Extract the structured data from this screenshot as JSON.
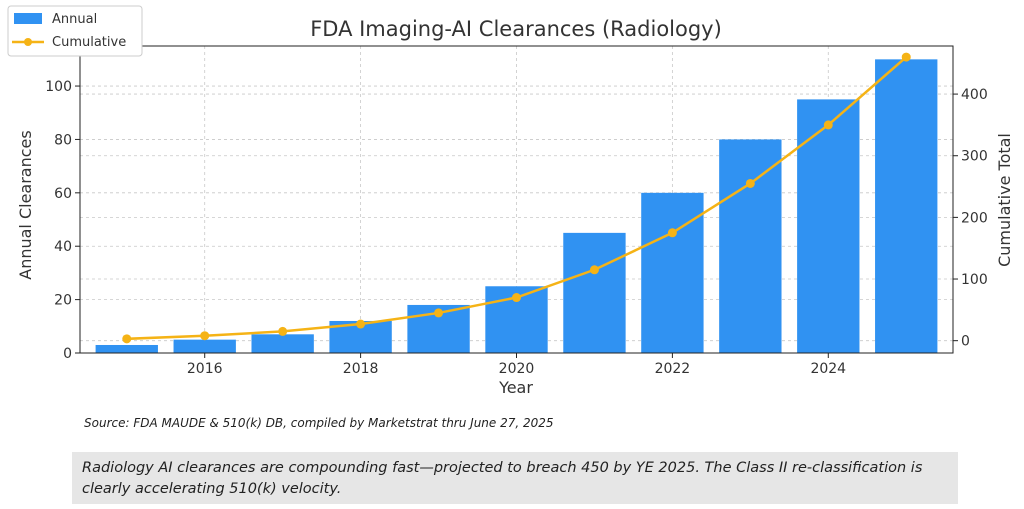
{
  "chart_data": {
    "type": "bar+line",
    "title": "FDA Imaging-AI Clearances (Radiology)",
    "xlabel": "Year",
    "ylabel_left": "Annual Clearances",
    "ylabel_right": "Cumulative Total",
    "x": [
      2015,
      2016,
      2017,
      2018,
      2019,
      2020,
      2021,
      2022,
      2023,
      2024,
      2025
    ],
    "x_ticks": [
      "2016",
      "2018",
      "2020",
      "2022",
      "2024"
    ],
    "x_tick_values": [
      2016,
      2018,
      2020,
      2022,
      2024
    ],
    "y_left_ticks": [
      "0",
      "20",
      "40",
      "60",
      "80",
      "100"
    ],
    "y_left_tick_values": [
      0,
      20,
      40,
      60,
      80,
      100
    ],
    "y_right_ticks": [
      "0",
      "100",
      "200",
      "300",
      "400"
    ],
    "y_right_tick_values": [
      0,
      100,
      200,
      300,
      400
    ],
    "ylim_left": [
      0,
      115
    ],
    "ylim_right": [
      -20,
      478
    ],
    "xlim": [
      2014.4,
      2025.6
    ],
    "grid": true,
    "legend_position": "top-left",
    "series": [
      {
        "name": "Annual",
        "kind": "bar",
        "axis": "left",
        "color": "#3092f2",
        "values": [
          3,
          5,
          7,
          12,
          18,
          25,
          45,
          60,
          80,
          95,
          110
        ]
      },
      {
        "name": "Cumulative",
        "kind": "line",
        "axis": "right",
        "color": "#f5b316",
        "values": [
          3,
          8,
          15,
          27,
          45,
          70,
          115,
          175,
          255,
          350,
          460
        ]
      }
    ]
  },
  "source_note": "Source: FDA MAUDE & 510(k) DB, compiled by Marketstrat thru June 27, 2025",
  "callout_text": "Radiology AI clearances are compounding fast—projected to breach 450 by YE 2025. The Class II re-classification is clearly accelerating 510(k) velocity."
}
